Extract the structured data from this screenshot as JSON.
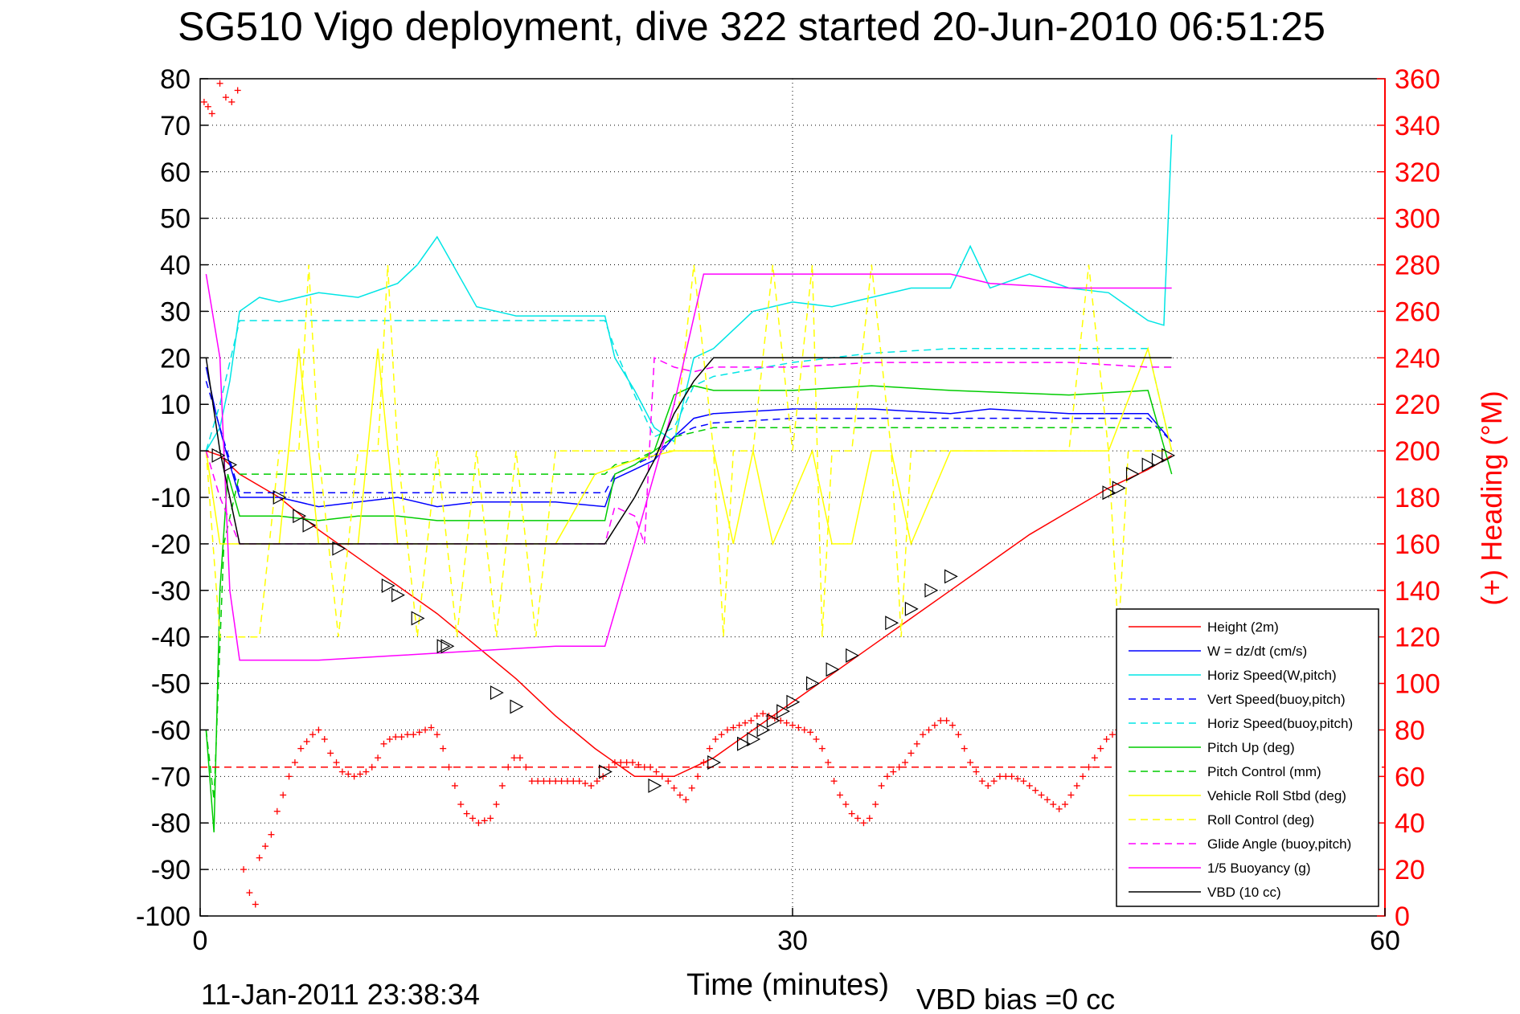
{
  "chart_data": {
    "type": "line",
    "title": "SG510 Vigo deployment, dive 322 started 20-Jun-2010 06:51:25",
    "xlabel": "Time (minutes)",
    "ylabel": "",
    "y2label": "(+) Heading (°M)",
    "xlim": [
      0,
      60
    ],
    "ylim": [
      -100,
      80
    ],
    "y2lim": [
      0,
      360
    ],
    "xticks": [
      "0",
      "30",
      "60"
    ],
    "yticks": [
      "80",
      "70",
      "60",
      "50",
      "40",
      "30",
      "20",
      "10",
      "0",
      "-10",
      "-20",
      "-30",
      "-40",
      "-50",
      "-60",
      "-70",
      "-80",
      "-90",
      "-100"
    ],
    "y2ticks": [
      "360",
      "340",
      "320",
      "300",
      "280",
      "260",
      "240",
      "220",
      "200",
      "180",
      "160",
      "140",
      "120",
      "100",
      "80",
      "60",
      "40",
      "20",
      "0"
    ],
    "grid": true,
    "legend_position": "bottom-right",
    "footer_left": "11-Jan-2011 23:38:34",
    "footer_right": "VBD bias =0 cc",
    "series": [
      {
        "name": "Height (2m)",
        "color": "#ff0000",
        "style": "solid",
        "x": [
          0.3,
          1,
          2,
          4,
          6,
          8,
          10,
          12,
          14,
          16,
          18,
          20,
          22,
          24,
          26,
          28,
          30,
          32,
          34,
          36,
          38,
          40,
          42,
          44,
          46,
          48,
          49.2
        ],
        "y": [
          0,
          -1,
          -5,
          -10,
          -17,
          -23,
          -29,
          -35,
          -42,
          -49,
          -57,
          -64,
          -70,
          -70,
          -66,
          -60,
          -54,
          -48,
          -42,
          -36,
          -30,
          -24,
          -18,
          -13,
          -8,
          -4,
          -1
        ]
      },
      {
        "name": "W = dz/dt (cm/s)",
        "color": "#0000ff",
        "style": "solid",
        "x": [
          0.3,
          0.8,
          1.3,
          2,
          4,
          6,
          8,
          10,
          12,
          14,
          16,
          18,
          20.5,
          21,
          22,
          23,
          24,
          25,
          26,
          30,
          34,
          38,
          40,
          44,
          48,
          49.2
        ],
        "y": [
          18,
          8,
          0,
          -10,
          -10,
          -12,
          -11,
          -10,
          -12,
          -11,
          -11,
          -11,
          -12,
          -6,
          -4,
          -2,
          3,
          7,
          8,
          9,
          9,
          8,
          9,
          8,
          8,
          2
        ]
      },
      {
        "name": "Horiz Speed(W,pitch)",
        "color": "#00e5e5",
        "style": "solid",
        "x": [
          0.3,
          1,
          1.5,
          2,
          3,
          4,
          5,
          6,
          8,
          10,
          11,
          12,
          14,
          16,
          18,
          20.5,
          21,
          22,
          23,
          24,
          25,
          26,
          28,
          30,
          32,
          34,
          36,
          38,
          39,
          40,
          42,
          44,
          46,
          48,
          48.8,
          49.2
        ],
        "y": [
          0,
          5,
          15,
          30,
          33,
          32,
          33,
          34,
          33,
          36,
          40,
          46,
          31,
          29,
          29,
          29,
          20,
          13,
          5,
          2,
          20,
          22,
          30,
          32,
          31,
          33,
          35,
          35,
          44,
          35,
          38,
          35,
          34,
          28,
          27,
          68
        ]
      },
      {
        "name": "Vert Speed(buoy,pitch)",
        "color": "#0000ff",
        "style": "dashed",
        "x": [
          0.3,
          1,
          2,
          4,
          6,
          8,
          10,
          12,
          14,
          16,
          18,
          20.5,
          21,
          22,
          23,
          24,
          25,
          26,
          30,
          34,
          38,
          44,
          48,
          49.2
        ],
        "y": [
          15,
          5,
          -9,
          -9,
          -9,
          -9,
          -9,
          -9,
          -9,
          -9,
          -9,
          -9,
          -5,
          -3,
          -1,
          3,
          5,
          6,
          7,
          7,
          7,
          7,
          7,
          2
        ]
      },
      {
        "name": "Horiz Speed(buoy,pitch)",
        "color": "#00e5e5",
        "style": "dashed",
        "x": [
          0.3,
          1,
          2,
          4,
          6,
          8,
          10,
          12,
          14,
          16,
          18,
          20.5,
          21,
          22,
          23,
          24,
          25,
          26,
          30,
          34,
          38,
          44,
          48,
          49.2
        ],
        "y": [
          0,
          10,
          28,
          28,
          28,
          28,
          28,
          28,
          28,
          28,
          28,
          28,
          22,
          12,
          3,
          5,
          14,
          16,
          19,
          21,
          22,
          22,
          22,
          0
        ]
      },
      {
        "name": "Pitch Up (deg)",
        "color": "#00cc00",
        "style": "solid",
        "x": [
          0.3,
          0.7,
          1,
          1.4,
          2,
          4,
          6,
          8,
          10,
          12,
          14,
          16,
          18,
          20.5,
          21,
          22,
          23,
          24,
          25,
          26,
          30,
          34,
          38,
          44,
          48,
          49.2
        ],
        "y": [
          -60,
          -82,
          -30,
          -5,
          -14,
          -14,
          -15,
          -14,
          -14,
          -15,
          -15,
          -15,
          -15,
          -15,
          -5,
          -3,
          0,
          12,
          14,
          13,
          13,
          14,
          13,
          12,
          13,
          -5
        ]
      },
      {
        "name": "Pitch Control (mm)",
        "color": "#00cc00",
        "style": "dashed",
        "x": [
          0.3,
          0.7,
          1.2,
          2,
          20.5,
          21,
          22,
          23,
          24,
          25,
          26,
          49.2
        ],
        "y": [
          -60,
          -75,
          -20,
          -5,
          -5,
          -3,
          -2,
          0,
          3,
          4,
          5,
          5
        ]
      },
      {
        "name": "Vehicle Roll Stbd (deg)",
        "color": "#ffff00",
        "style": "solid",
        "x": [
          0.3,
          1,
          2,
          4,
          5,
          6,
          7,
          8,
          9,
          10,
          11,
          12,
          14,
          16,
          18,
          20,
          22,
          24,
          26,
          27,
          28,
          29,
          30,
          31,
          32,
          33,
          34,
          35,
          36,
          38,
          40,
          42,
          44,
          46,
          48,
          49.2
        ],
        "y": [
          0,
          -20,
          -20,
          -20,
          22,
          -20,
          -20,
          -20,
          22,
          -20,
          -20,
          -20,
          -20,
          -20,
          -20,
          -5,
          -2,
          0,
          0,
          -20,
          0,
          -20,
          -10,
          0,
          -20,
          -20,
          0,
          0,
          -20,
          0,
          0,
          0,
          0,
          0,
          22,
          0
        ]
      },
      {
        "name": "Roll Control (deg)",
        "color": "#ffff00",
        "style": "dashed",
        "x": [
          0.3,
          1,
          2,
          3,
          4,
          5,
          5.5,
          6,
          7,
          8,
          9,
          9.5,
          10,
          11,
          12,
          13,
          14,
          15,
          16,
          17,
          18,
          20,
          22,
          24,
          25,
          26,
          26.5,
          27,
          28,
          29,
          30,
          31,
          31.5,
          32,
          33,
          34,
          35,
          35.5,
          36,
          37,
          38,
          39,
          40,
          42,
          44,
          45,
          46,
          46.5,
          47,
          48,
          49.2
        ],
        "y": [
          0,
          -40,
          -40,
          -40,
          0,
          0,
          40,
          0,
          -40,
          0,
          0,
          40,
          0,
          -40,
          0,
          -40,
          0,
          -40,
          0,
          -40,
          0,
          0,
          0,
          0,
          40,
          0,
          -40,
          0,
          0,
          40,
          0,
          40,
          -40,
          0,
          0,
          40,
          0,
          -40,
          0,
          0,
          0,
          0,
          0,
          0,
          0,
          40,
          0,
          -40,
          0,
          0,
          0
        ]
      },
      {
        "name": "Glide Angle (buoy,pitch)",
        "color": "#ff00ff",
        "style": "dashed",
        "x": [
          0.3,
          1,
          2,
          4,
          6,
          8,
          10,
          12,
          14,
          16,
          18,
          20.5,
          21,
          22,
          22.5,
          23,
          24,
          25,
          26,
          30,
          34,
          38,
          44,
          48,
          49.2
        ],
        "y": [
          0,
          -10,
          -20,
          -20,
          -20,
          -20,
          -20,
          -20,
          -20,
          -20,
          -20,
          -20,
          -12,
          -14,
          -20,
          20,
          18,
          17,
          18,
          18,
          19,
          19,
          19,
          18,
          18
        ]
      },
      {
        "name": "1/5 Buoyancy (g)",
        "color": "#ff00ff",
        "style": "solid",
        "x": [
          0.3,
          1,
          1.5,
          2,
          6,
          10,
          14,
          18,
          20.5,
          22,
          24,
          25.5,
          26,
          28,
          30,
          34,
          38,
          39,
          40,
          44,
          48,
          49.2
        ],
        "y": [
          38,
          20,
          -30,
          -45,
          -45,
          -44,
          -43,
          -42,
          -42,
          -20,
          10,
          38,
          38,
          38,
          38,
          38,
          38,
          37,
          36,
          35,
          35,
          35
        ]
      },
      {
        "name": "VBD (10 cc)",
        "color": "#000000",
        "style": "solid",
        "x": [
          0.3,
          1,
          1.5,
          2,
          4,
          8,
          12,
          16,
          20.5,
          22,
          23,
          24,
          25,
          26,
          30,
          34,
          38,
          44,
          48,
          49.2
        ],
        "y": [
          20,
          0,
          -10,
          -20,
          -20,
          -20,
          -20,
          -20,
          -20,
          -10,
          -2,
          8,
          15,
          20,
          20,
          20,
          20,
          20,
          20,
          20
        ]
      }
    ],
    "heading_mean": 64,
    "heading_points": {
      "x": [
        0.2,
        0.4,
        0.6,
        1,
        1.3,
        1.6,
        1.9,
        2.2,
        2.5,
        2.8,
        3,
        3.3,
        3.6,
        3.9,
        4.2,
        4.5,
        4.8,
        5.1,
        5.4,
        5.7,
        6,
        6.3,
        6.6,
        6.9,
        7.2,
        7.5,
        7.8,
        8.1,
        8.4,
        8.7,
        9,
        9.3,
        9.6,
        9.9,
        10.2,
        10.5,
        10.8,
        11.1,
        11.4,
        11.7,
        12,
        12.3,
        12.6,
        12.9,
        13.2,
        13.5,
        13.8,
        14.1,
        14.4,
        14.7,
        15,
        15.3,
        15.6,
        15.9,
        16.2,
        16.5,
        16.8,
        17.1,
        17.4,
        17.7,
        18,
        18.3,
        18.6,
        18.9,
        19.2,
        19.5,
        19.8,
        20.1,
        20.4,
        20.7,
        21,
        21.3,
        21.6,
        21.9,
        22.2,
        22.5,
        22.8,
        23.1,
        23.4,
        23.7,
        24,
        24.3,
        24.6,
        24.9,
        25.2,
        25.5,
        25.8,
        26.1,
        26.4,
        26.7,
        27,
        27.3,
        27.6,
        27.9,
        28.2,
        28.5,
        28.8,
        29.1,
        29.4,
        29.7,
        30,
        30.3,
        30.6,
        30.9,
        31.2,
        31.5,
        31.8,
        32.1,
        32.4,
        32.7,
        33,
        33.3,
        33.6,
        33.9,
        34.2,
        34.5,
        34.8,
        35.1,
        35.4,
        35.7,
        36,
        36.3,
        36.6,
        36.9,
        37.2,
        37.5,
        37.8,
        38.1,
        38.4,
        38.7,
        39,
        39.3,
        39.6,
        39.9,
        40.2,
        40.5,
        40.8,
        41.1,
        41.4,
        41.7,
        42,
        42.3,
        42.6,
        42.9,
        43.2,
        43.5,
        43.8,
        44.1,
        44.4,
        44.7,
        45,
        45.3,
        45.6,
        45.9,
        46.2,
        46.5,
        46.8,
        47.1,
        47.4,
        47.7,
        48,
        48.3
      ],
      "y": [
        350,
        348,
        345,
        358,
        352,
        350,
        355,
        20,
        10,
        5,
        25,
        30,
        35,
        45,
        52,
        60,
        66,
        72,
        75,
        78,
        80,
        76,
        70,
        66,
        62,
        61,
        60,
        61,
        62,
        64,
        68,
        74,
        76,
        77,
        77,
        78,
        78,
        79,
        80,
        81,
        78,
        72,
        64,
        56,
        48,
        44,
        42,
        40,
        41,
        42,
        48,
        56,
        64,
        68,
        68,
        64,
        58,
        58,
        58,
        58,
        58,
        58,
        58,
        58,
        58,
        57,
        56,
        58,
        60,
        64,
        66,
        66,
        66,
        66,
        65,
        64,
        64,
        62,
        60,
        58,
        55,
        52,
        50,
        55,
        60,
        66,
        72,
        76,
        78,
        80,
        81,
        82,
        83,
        84,
        86,
        87,
        86,
        85,
        84,
        83,
        82,
        81,
        80,
        79,
        76,
        72,
        66,
        58,
        52,
        48,
        44,
        42,
        40,
        42,
        48,
        56,
        60,
        62,
        64,
        66,
        70,
        74,
        78,
        80,
        82,
        84,
        84,
        82,
        78,
        72,
        66,
        62,
        58,
        56,
        58,
        60,
        60,
        60,
        59,
        58,
        56,
        54,
        52,
        50,
        48,
        46,
        48,
        52,
        56,
        60,
        64,
        68,
        72,
        76,
        78,
        80,
        80,
        78,
        74,
        70,
        66,
        62
      ]
    },
    "markers": {
      "x": [
        0.9,
        1.5,
        4,
        5,
        5.5,
        7,
        9.5,
        10,
        11,
        12.3,
        12.5,
        15,
        16,
        20.5,
        23,
        26,
        27.5,
        28,
        28.5,
        29,
        29.5,
        30,
        31,
        32,
        33,
        35,
        36,
        37,
        38,
        46,
        46.5,
        47.2,
        48,
        48.5,
        49
      ],
      "y": [
        -1,
        -3,
        -10,
        -14,
        -16,
        -21,
        -29,
        -31,
        -36,
        -42,
        -42,
        -52,
        -55,
        -69,
        -72,
        -67,
        -63,
        -62,
        -60,
        -58,
        -56,
        -54,
        -50,
        -47,
        -44,
        -37,
        -34,
        -30,
        -27,
        -9,
        -8,
        -5,
        -3,
        -2,
        -1
      ]
    }
  }
}
